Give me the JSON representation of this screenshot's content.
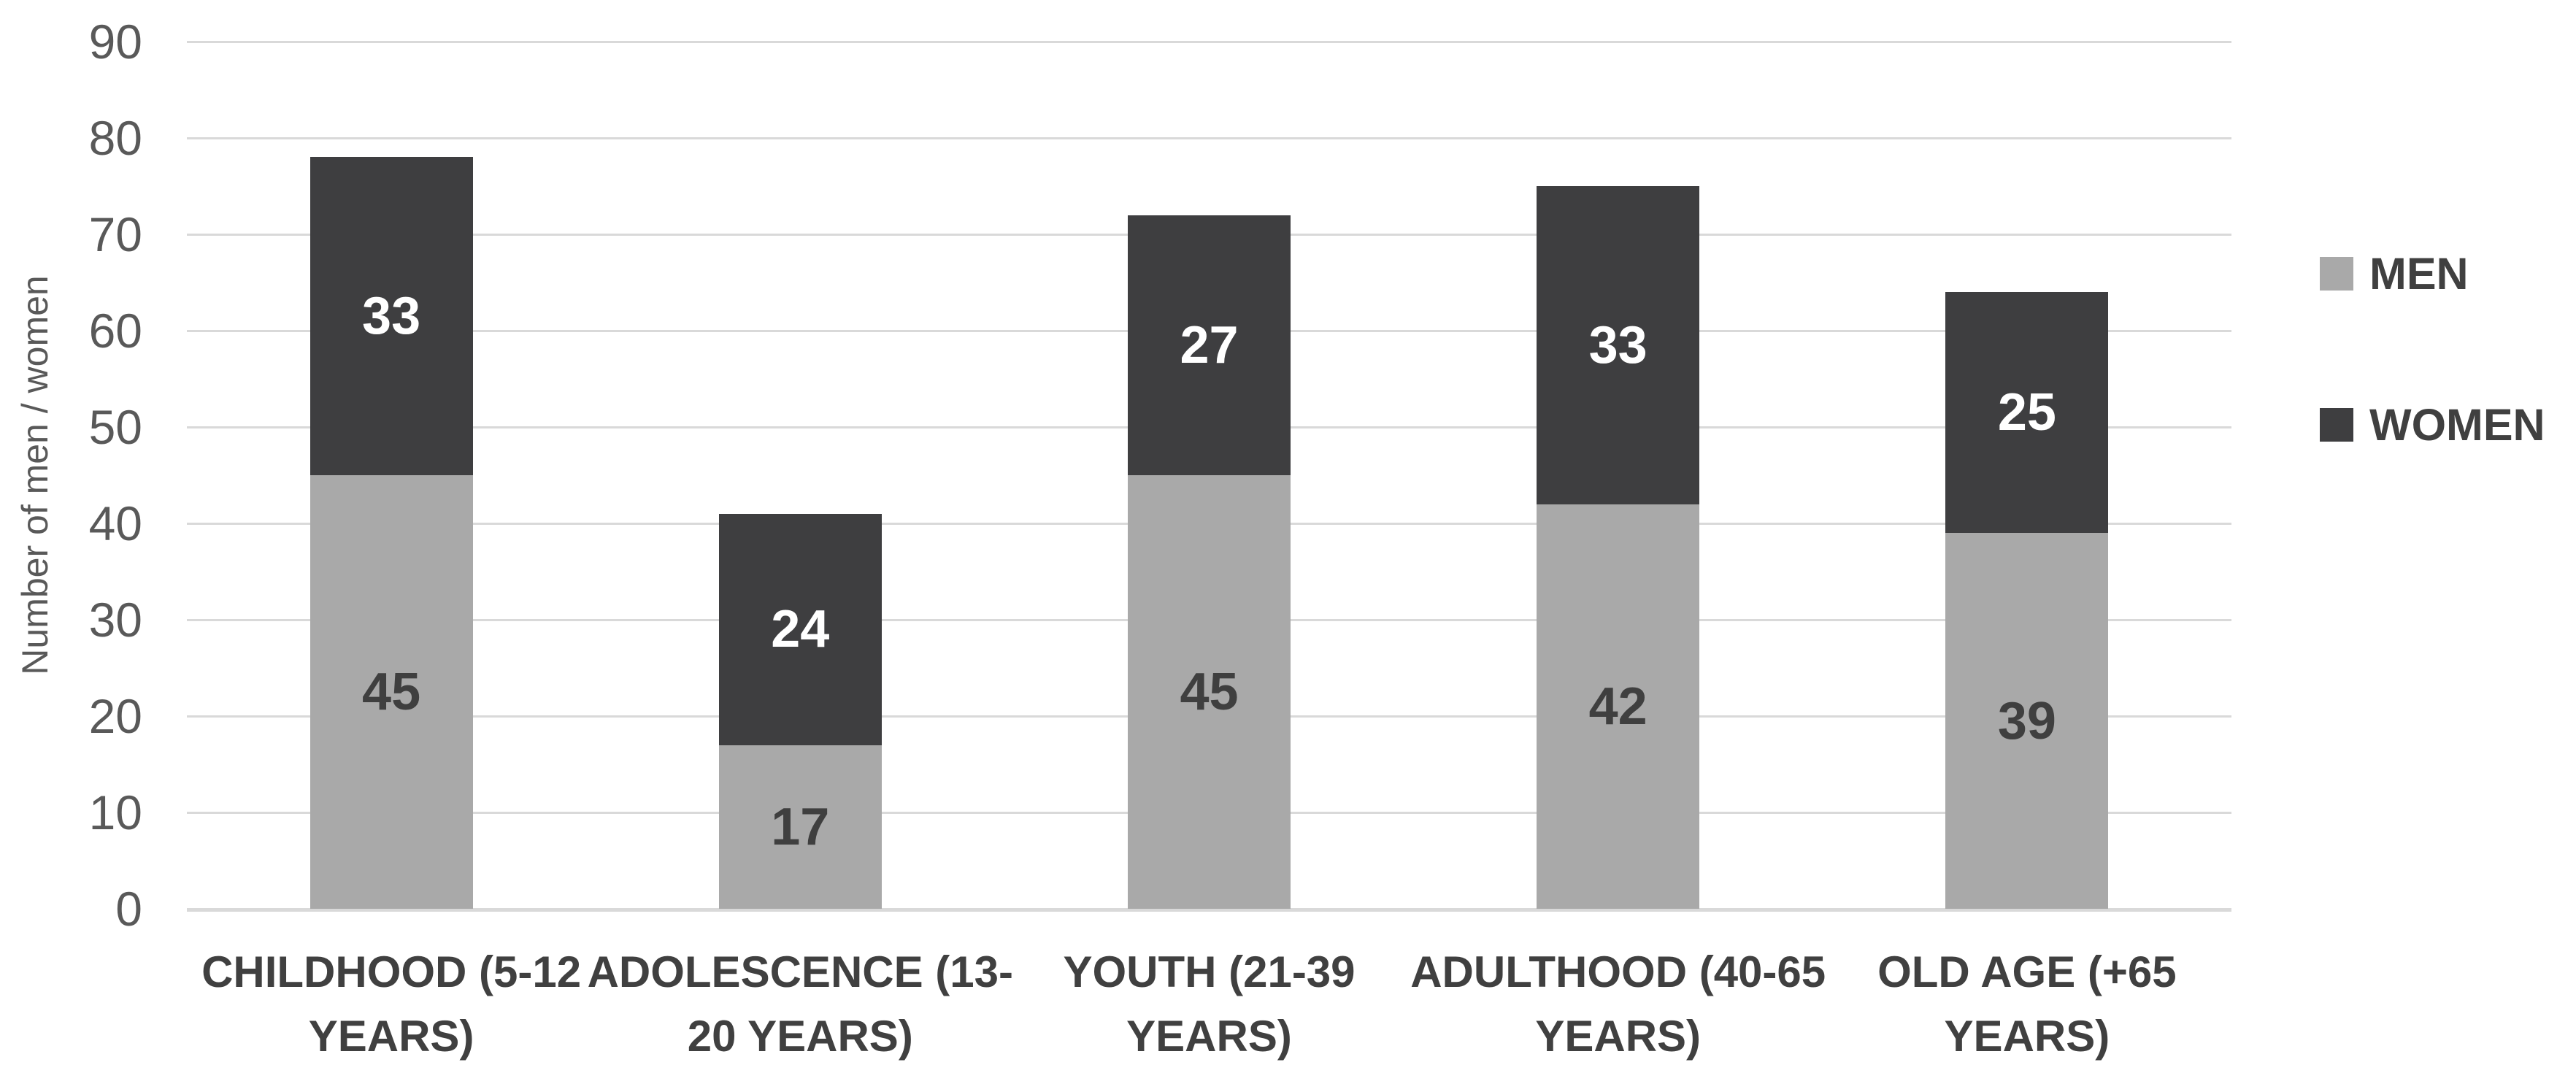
{
  "chart_data": {
    "type": "bar",
    "stacked": true,
    "title": "",
    "xlabel": "",
    "ylabel": "Number of men / women",
    "categories": [
      "CHILDHOOD (5-12 YEARS)",
      "ADOLESCENCE (13-20 YEARS)",
      "YOUTH (21-39 YEARS)",
      "ADULTHOOD (40-65 YEARS)",
      "OLD AGE (+65 YEARS)"
    ],
    "category_label_lines": [
      [
        "CHILDHOOD (5-12",
        "YEARS)"
      ],
      [
        "ADOLESCENCE (13-",
        "20 YEARS)"
      ],
      [
        "YOUTH (21-39",
        "YEARS)"
      ],
      [
        "ADULTHOOD (40-65",
        "YEARS)"
      ],
      [
        "OLD AGE (+65",
        "YEARS)"
      ]
    ],
    "series": [
      {
        "name": "MEN",
        "values": [
          45,
          17,
          45,
          42,
          39
        ],
        "color": "#a9a9a9",
        "label_color": "#3f3f3f"
      },
      {
        "name": "WOMEN",
        "values": [
          33,
          24,
          27,
          33,
          25
        ],
        "color": "#3e3e40",
        "label_color": "#ffffff"
      }
    ],
    "ylim": [
      0,
      90
    ],
    "yticks": [
      0,
      10,
      20,
      30,
      40,
      50,
      60,
      70,
      80,
      90
    ],
    "grid": true,
    "legend_position": "right",
    "colors": {
      "background": "#ffffff",
      "gridline": "#d9d9d9",
      "axis_line": "#d9d9d9",
      "tick_label": "#595959",
      "axis_title": "#595959",
      "category_label": "#404040",
      "legend_label": "#404040"
    }
  }
}
